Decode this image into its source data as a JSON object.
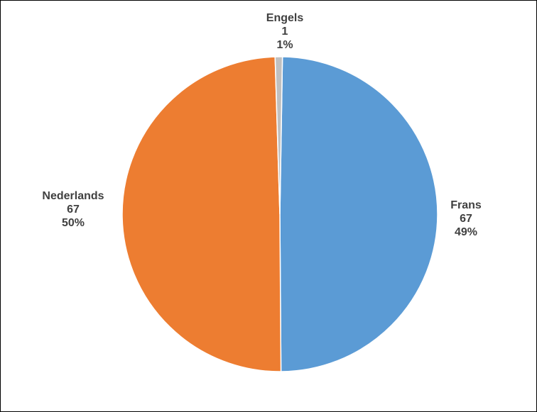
{
  "chart_data": {
    "type": "pie",
    "slices": [
      {
        "label": "Frans",
        "value": 67,
        "percent": "49%",
        "color": "#5b9bd5"
      },
      {
        "label": "Nederlands",
        "value": 67,
        "percent": "50%",
        "color": "#ed7d31"
      },
      {
        "label": "Engels",
        "value": 1,
        "percent": "1%",
        "color": "#c0c0c0"
      }
    ],
    "start_slice": "Frans",
    "legend": "none",
    "data_labels": "outside"
  }
}
